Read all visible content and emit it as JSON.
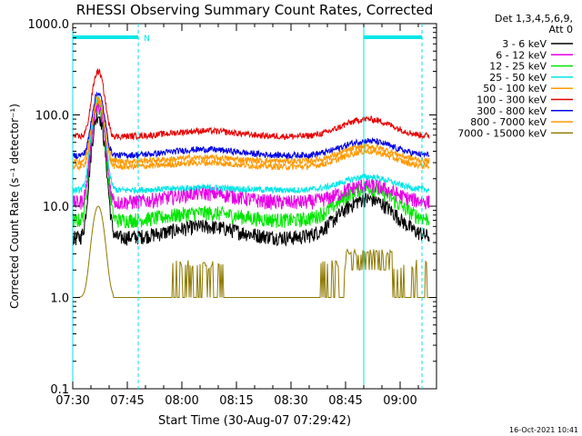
{
  "chart_data": {
    "type": "line",
    "title": "RHESSI Observing Summary Count Rates, Corrected",
    "xlabel": "Start Time (30-Aug-07 07:29:42)",
    "ylabel": "Corrected Count Rate (s⁻¹ detector⁻¹)",
    "x_ticks": [
      "07:30",
      "07:45",
      "08:00",
      "08:15",
      "08:30",
      "08:45",
      "09:00"
    ],
    "y_ticks": [
      "1000.0",
      "100.0",
      "10.0",
      "1.0",
      "0.1"
    ],
    "y_scale": "log",
    "ylim": [
      0.1,
      1000
    ],
    "xlim_minutes": [
      0,
      100
    ],
    "grid": false,
    "legend_position": "top-right",
    "legend_header": [
      "Det 1,3,4,5,6,9,",
      "Att 0"
    ],
    "series": [
      {
        "name": "3 - 6 keV",
        "color": "#000000",
        "base": 4.5,
        "peak": 100,
        "hump1": 6,
        "hump2": 12
      },
      {
        "name": "6 - 12 keV",
        "color": "#e600e6",
        "base": 11,
        "peak": 125,
        "hump1": 14,
        "hump2": 17
      },
      {
        "name": "12 - 25 keV",
        "color": "#00e600",
        "base": 7,
        "peak": 135,
        "hump1": 8.5,
        "hump2": 16
      },
      {
        "name": "25 - 50 keV",
        "color": "#00e6e6",
        "base": 15,
        "peak": 150,
        "hump1": 16,
        "hump2": 21
      },
      {
        "name": "50 - 100 keV",
        "color": "#ff9900",
        "base": 27,
        "peak": 140,
        "hump1": 30,
        "hump2": 40
      },
      {
        "name": "100 - 300 keV",
        "color": "#e60000",
        "base": 58,
        "peak": 300,
        "hump1": 67,
        "hump2": 90
      },
      {
        "name": "300 - 800 keV",
        "color": "#0000e6",
        "base": 36,
        "peak": 175,
        "hump1": 42,
        "hump2": 52
      },
      {
        "name": "800 - 7000 keV",
        "color": "#ff9900",
        "base": 31,
        "peak": 155,
        "hump1": 34,
        "hump2": 45
      },
      {
        "name": "7000 - 15000 keV",
        "color": "#8f7a00",
        "base": 1.0,
        "peak": 10,
        "hump1": 1.6,
        "hump2": 2.4
      }
    ],
    "eclipse_bars": [
      {
        "label": "N",
        "start": "07:30",
        "end": "07:48"
      },
      {
        "label": "",
        "start": "08:50",
        "end": "09:06"
      }
    ]
  },
  "footer": {
    "timestamp": "16-Oct-2021 10:41"
  }
}
